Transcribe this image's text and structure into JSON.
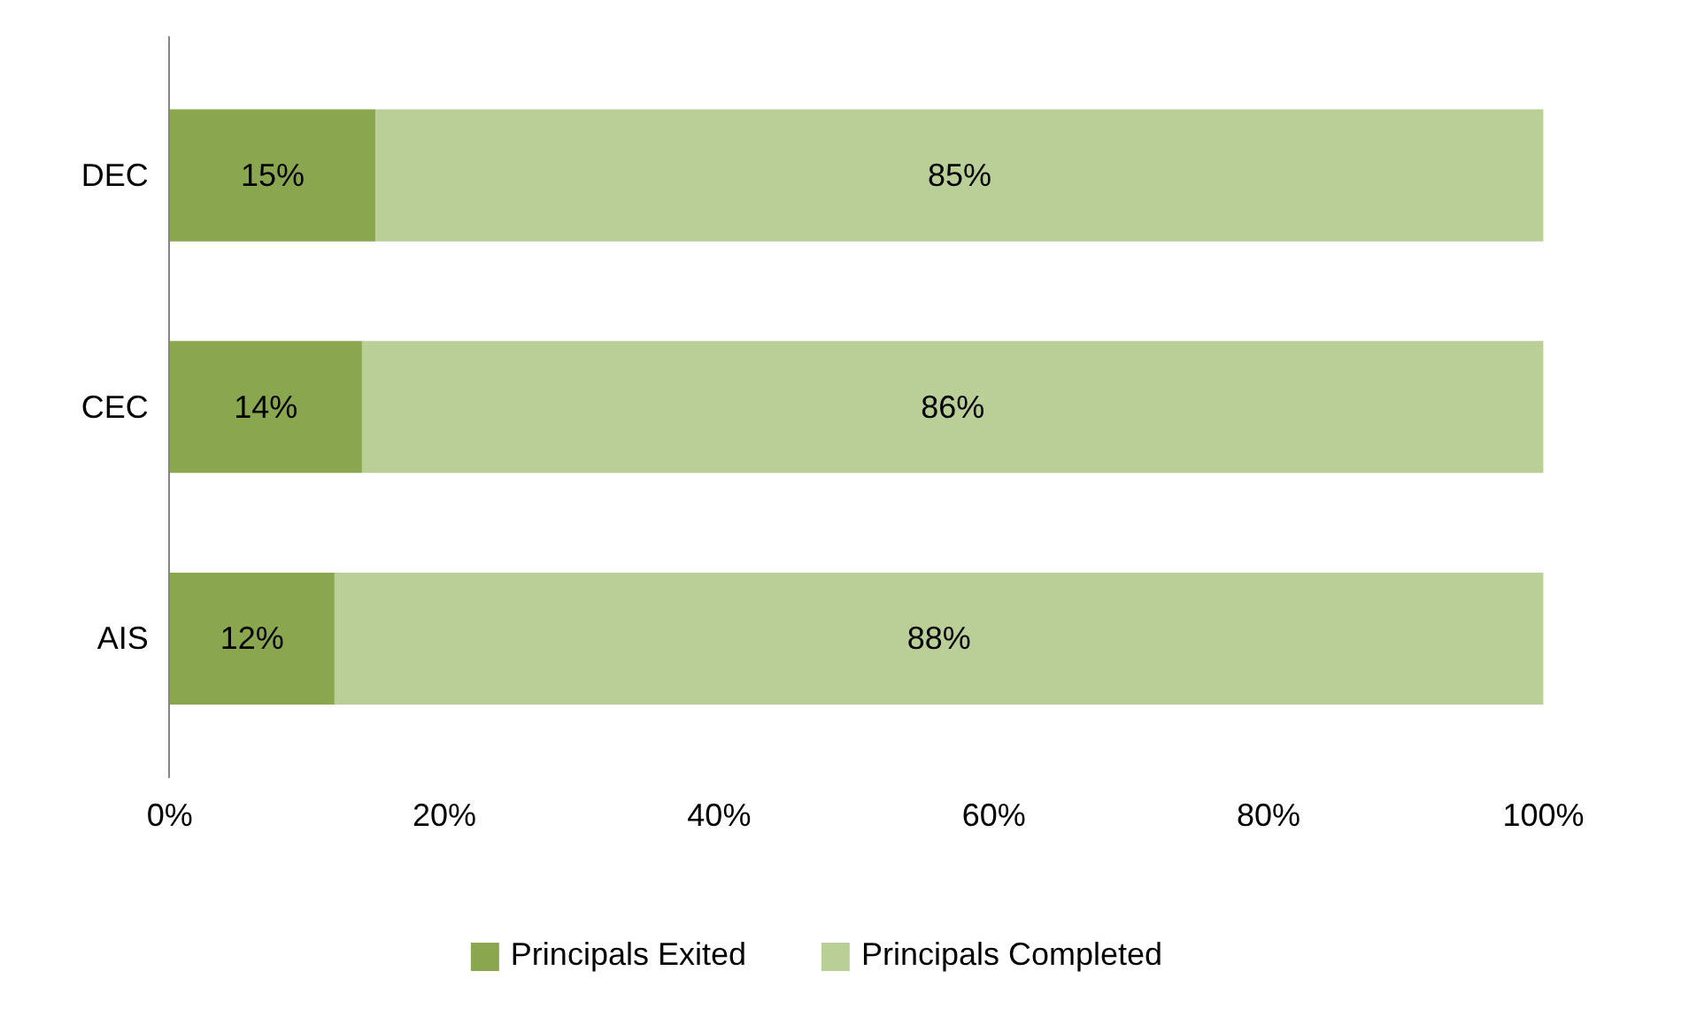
{
  "chart_data": {
    "type": "bar",
    "orientation": "horizontal",
    "stacked": true,
    "categories": [
      "DEC",
      "CEC",
      "AIS"
    ],
    "series": [
      {
        "name": "Principals Exited",
        "color": "#8aa74f",
        "values": [
          15,
          14,
          12
        ],
        "value_labels": [
          "15%",
          "14%",
          "12%"
        ]
      },
      {
        "name": "Principals Completed",
        "color": "#bacf97",
        "values": [
          85,
          86,
          88
        ],
        "value_labels": [
          "85%",
          "86%",
          "88%"
        ]
      }
    ],
    "xlim": [
      0,
      100
    ],
    "xticks": [
      {
        "value": 0,
        "label": "0%"
      },
      {
        "value": 20,
        "label": "20%"
      },
      {
        "value": 40,
        "label": "40%"
      },
      {
        "value": 60,
        "label": "60%"
      },
      {
        "value": 80,
        "label": "80%"
      },
      {
        "value": 100,
        "label": "100%"
      }
    ],
    "grid": false,
    "legend": "bottom"
  }
}
